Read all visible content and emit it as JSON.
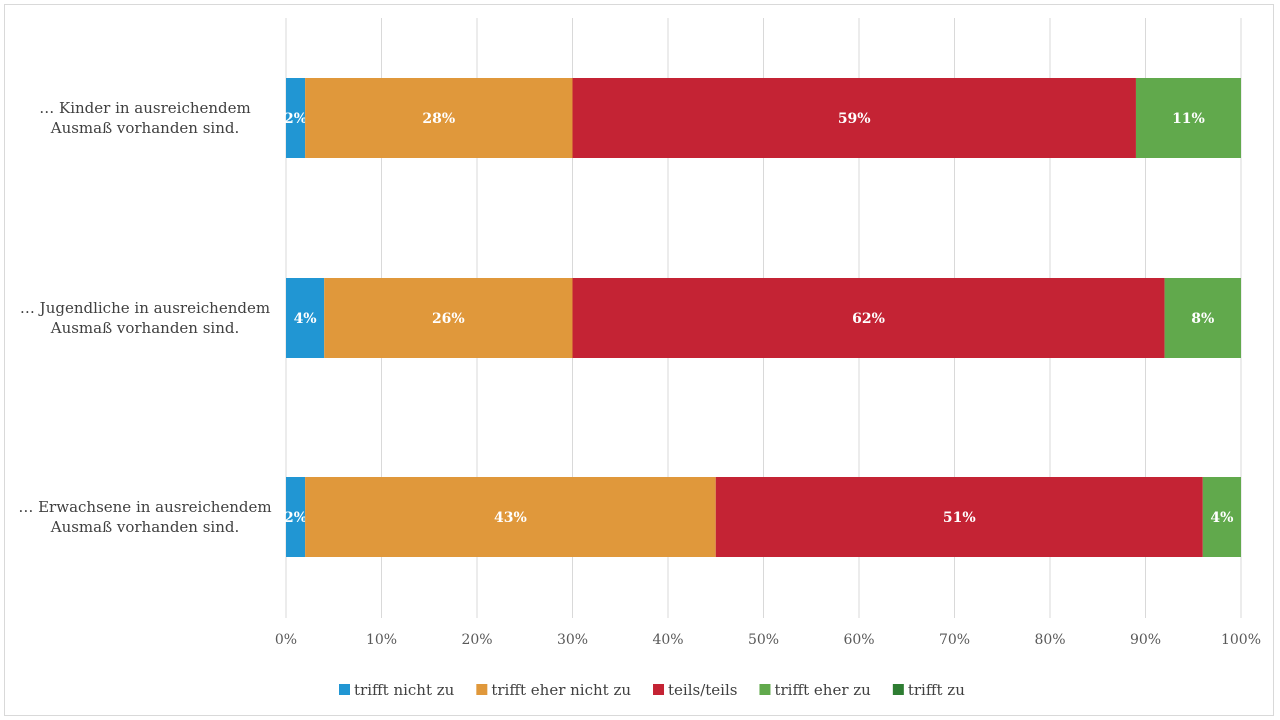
{
  "chart_data": {
    "type": "bar",
    "orientation": "horizontal",
    "stacking": "percent",
    "categories": [
      [
        "… Kinder in ausreichendem",
        "Ausmaß vorhanden sind."
      ],
      [
        "… Jugendliche in ausreichendem",
        "Ausmaß vorhanden sind."
      ],
      [
        "… Erwachsene in ausreichendem",
        "Ausmaß vorhanden sind."
      ]
    ],
    "series": [
      {
        "name": "trifft nicht zu",
        "color": "#2196d3",
        "values": [
          2,
          4,
          2
        ]
      },
      {
        "name": "trifft eher nicht zu",
        "color": "#e0983b",
        "values": [
          28,
          26,
          43
        ]
      },
      {
        "name": "teils/teils",
        "color": "#c42334",
        "values": [
          59,
          62,
          51
        ]
      },
      {
        "name": "trifft eher zu",
        "color": "#61a94c",
        "values": [
          11,
          8,
          4
        ]
      },
      {
        "name": "trifft zu",
        "color": "#2e7d32",
        "values": [
          0,
          0,
          0
        ]
      }
    ],
    "xlim": [
      0,
      100
    ],
    "xticks": [
      "0%",
      "10%",
      "20%",
      "30%",
      "40%",
      "50%",
      "60%",
      "70%",
      "80%",
      "90%",
      "100%"
    ],
    "grid": true,
    "legend_position": "bottom"
  }
}
